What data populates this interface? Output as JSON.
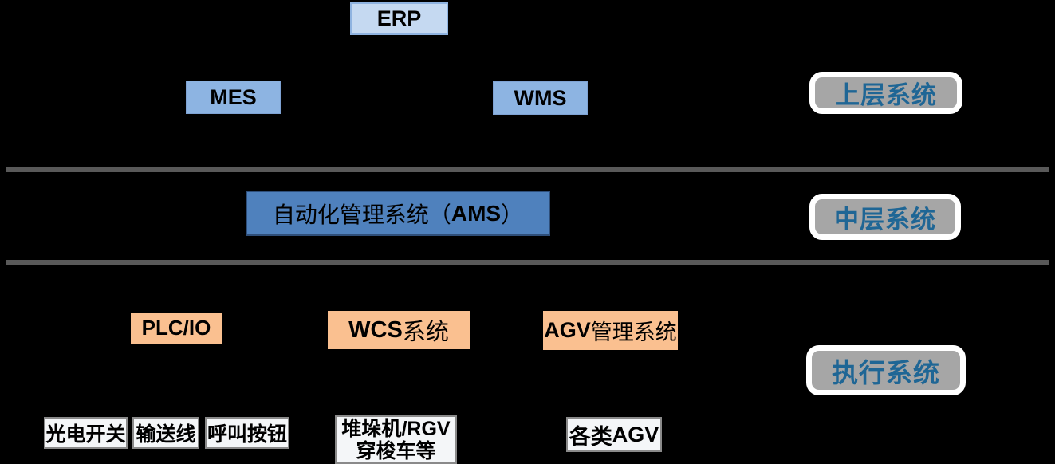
{
  "colors": {
    "background": "#000000",
    "erp_fill": "#C5D9F1",
    "mes_wms_fill": "#8DB4E2",
    "ams_fill": "#4F81BD",
    "execution_fill": "#FAC090",
    "device_fill": "#F4F6F8",
    "tag_fill": "#A6A6A6",
    "tag_border": "#FFFFFF",
    "tag_text": "#1F6695",
    "divider": "#595959",
    "box_text": "#000000"
  },
  "top_layer": {
    "erp_label": "ERP",
    "mes_label": "MES",
    "wms_label": "WMS",
    "tag_label": "上层系统"
  },
  "middle_layer": {
    "ams_zh": "自动化管理系统（",
    "ams_en": "AMS",
    "ams_close": "）",
    "tag_label": "中层系统"
  },
  "execution_layer": {
    "plc_label": "PLC/IO",
    "wcs_en": "WCS",
    "wcs_zh": "系统",
    "agv_en": "AGV",
    "agv_zh": "管理系统",
    "tag_label": "执行系统"
  },
  "devices": {
    "photoelectric_switch": "光电开关",
    "conveyor_line": "输送线",
    "call_button": "呼叫按钮",
    "stacker_line1_zh": "堆垛机",
    "stacker_line1_en": "/RGV",
    "stacker_line2": "穿梭车等",
    "agv_types_zh": "各类",
    "agv_types_en": "AGV"
  }
}
